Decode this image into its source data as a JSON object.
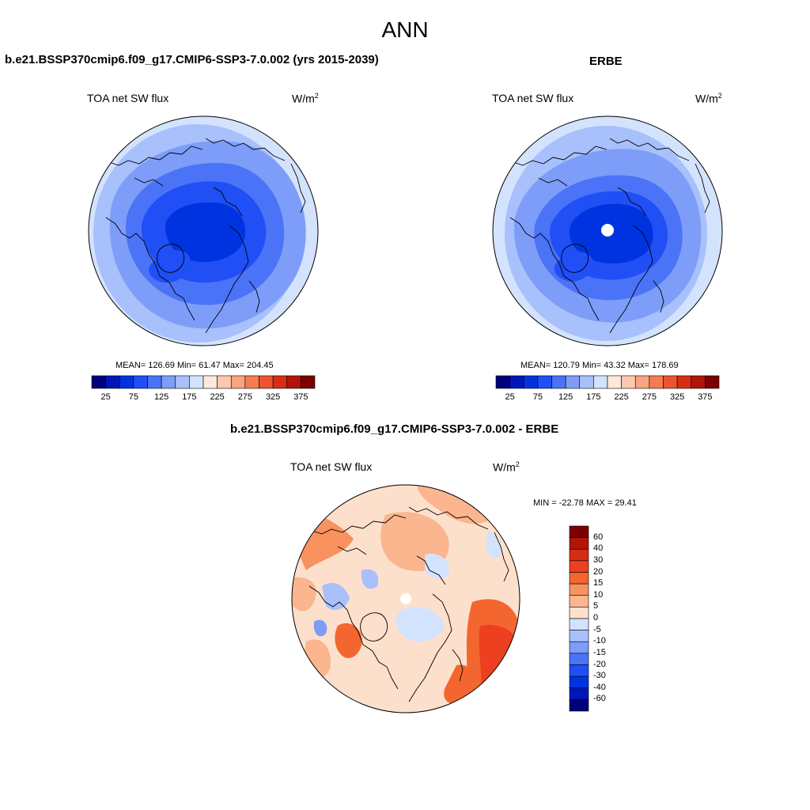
{
  "title": "ANN",
  "panels": [
    {
      "case_title": "b.e21.BSSP370cmip6.f09_g17.CMIP6-SSP3-7.0.002 (yrs 2015-2039)",
      "variable": "TOA net SW flux",
      "units_base": "W/m",
      "units_exp": "2",
      "stats": "MEAN= 126.69  Min=  61.47  Max= 204.45"
    },
    {
      "case_title": "ERBE",
      "variable": "TOA net SW flux",
      "units_base": "W/m",
      "units_exp": "2",
      "stats": "MEAN= 120.79  Min=  43.32  Max= 178.69"
    },
    {
      "case_title": "b.e21.BSSP370cmip6.f09_g17.CMIP6-SSP3-7.0.002 - ERBE",
      "variable": "TOA net SW flux",
      "units_base": "W/m",
      "units_exp": "2",
      "stats": "MIN = -22.78 MAX =  29.41"
    }
  ],
  "colorbar_main": {
    "colors": [
      "#00007a",
      "#0017b8",
      "#0033e0",
      "#1f4ff5",
      "#4a73f7",
      "#7d9df9",
      "#a8c0fb",
      "#d4e3fd",
      "#fde8dc",
      "#fcc9ae",
      "#f8a47f",
      "#f47c52",
      "#ec5430",
      "#d62d17",
      "#b01508",
      "#7d0000"
    ],
    "labels": [
      "25",
      "75",
      "125",
      "175",
      "225",
      "275",
      "325",
      "375"
    ]
  },
  "colorbar_diff": {
    "colors": [
      "#7d0000",
      "#b01508",
      "#d62d17",
      "#ec4020",
      "#f4662f",
      "#f8925f",
      "#fbb58f",
      "#fde0cc",
      "#d4e3fd",
      "#a8c0fb",
      "#7d9df9",
      "#4a73f7",
      "#1f4ff5",
      "#0033e0",
      "#0017b8",
      "#00007a"
    ],
    "labels": [
      "60",
      "40",
      "30",
      "20",
      "15",
      "10",
      "5",
      "0",
      "-5",
      "-10",
      "-15",
      "-20",
      "-30",
      "-40",
      "-60"
    ]
  }
}
